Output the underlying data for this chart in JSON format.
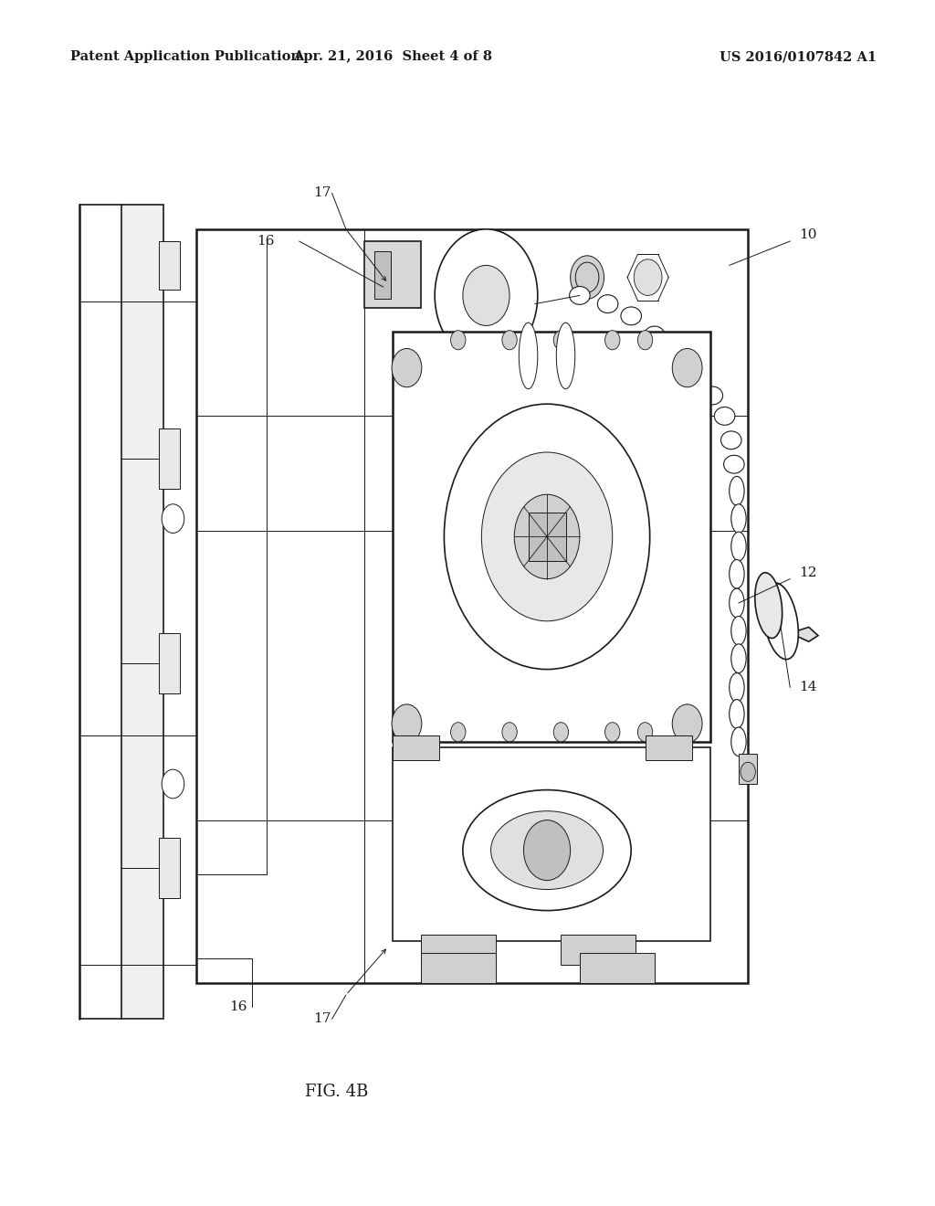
{
  "header_left": "Patent Application Publication",
  "header_center": "Apr. 21, 2016  Sheet 4 of 8",
  "header_right": "US 2016/0107842 A1",
  "figure_label": "FIG. 4B",
  "bg_color": "#ffffff",
  "line_color": "#1a1a1a",
  "text_color": "#1a1a1a",
  "header_fontsize": 10.5,
  "label_fontsize": 11,
  "fig_label_fontsize": 13
}
